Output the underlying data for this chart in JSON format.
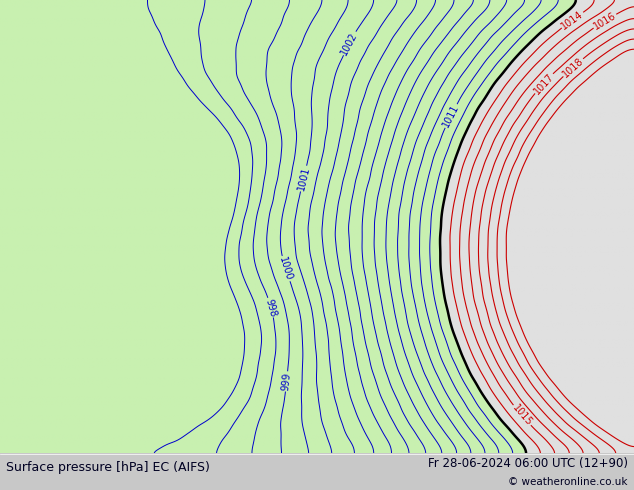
{
  "title_left": "Surface pressure [hPa] EC (AIFS)",
  "title_right": "Fr 28-06-2024 06:00 UTC (12+90)",
  "copyright": "© weatheronline.co.uk",
  "green_color": "#c8f0b0",
  "gray_color": "#e0e0e0",
  "blue_line_color": "#0000cc",
  "red_line_color": "#cc0000",
  "black_line_color": "#000000",
  "footer_bg": "#c8c8c8",
  "figsize": [
    6.34,
    4.9
  ],
  "dpi": 100
}
